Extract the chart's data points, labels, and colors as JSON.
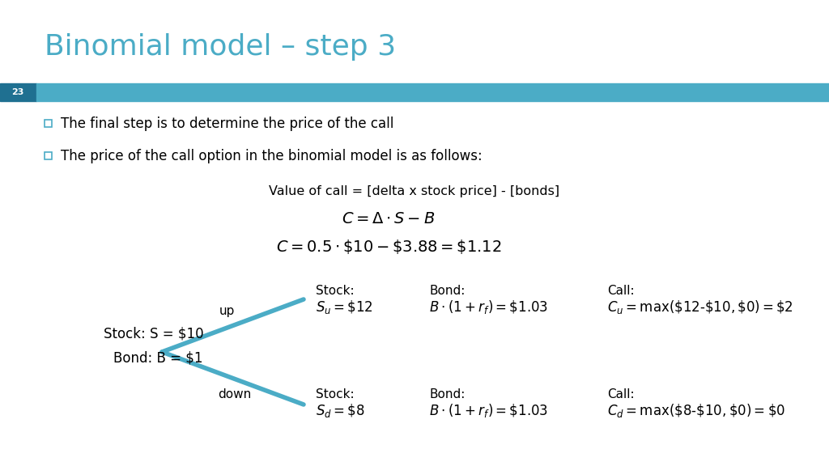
{
  "title": "Binomial model – step 3",
  "title_color": "#4BACC6",
  "title_fontsize": 26,
  "slide_number": "23",
  "bar_color": "#4BACC6",
  "dark_bar_color": "#1F7091",
  "background_color": "#FFFFFF",
  "bullet1": "The final step is to determine the price of the call",
  "bullet2": "The price of the call option in the binomial model is as follows:",
  "formula_text": "Value of call = [delta x stock price] - [bonds]",
  "formula1": "$C = \\Delta \\cdot S - B$",
  "formula2": "$C = 0.5 \\cdot \\$10 - \\$3.88 = \\$1.12$",
  "left_label1": "Stock: S = $10",
  "left_label2": "Bond: B = $1",
  "up_label": "up",
  "down_label": "down",
  "up_stock_label": "Stock:",
  "up_stock_val": "$S_u = \\$12$",
  "up_bond_label": "Bond:",
  "up_bond_val": "$B \\cdot (1 + r_f) = \\$1.03$",
  "up_call_label": "Call:",
  "up_call_val": "$C_u = \\mathrm{max}(\\$12\\text{-}\\$10,\\$0) = \\$2$",
  "dn_stock_label": "Stock:",
  "dn_stock_val": "$S_d = \\$8$",
  "dn_bond_label": "Bond:",
  "dn_bond_val": "$B \\cdot (1 + r_f) = \\$1.03$",
  "dn_call_label": "Call:",
  "dn_call_val": "$C_d = \\mathrm{max}(\\$8\\text{-}\\$10,\\$0) = \\$0$",
  "arrow_color": "#4BACC6",
  "text_color": "#000000",
  "bullet_square_color": "#4BACC6"
}
